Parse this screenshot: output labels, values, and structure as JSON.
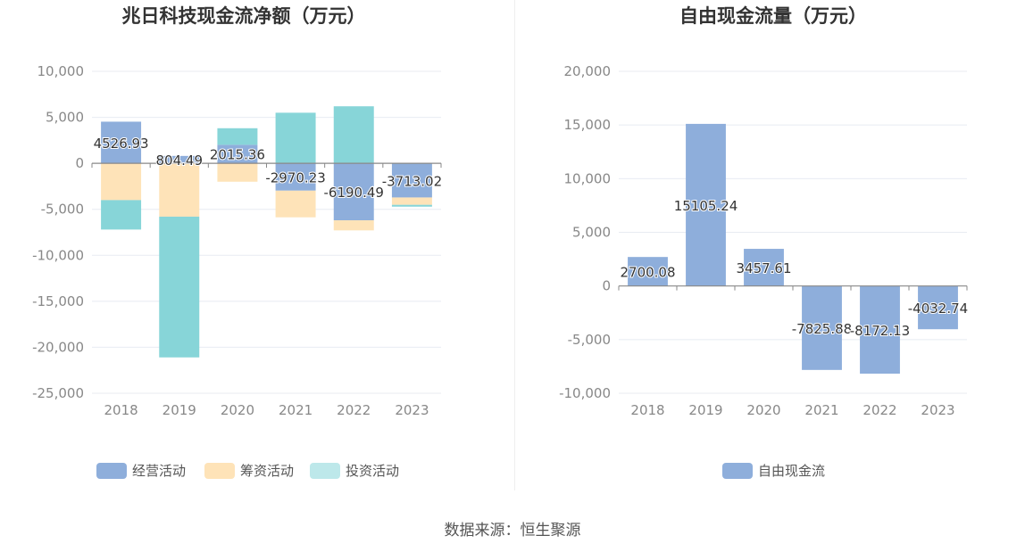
{
  "colors": {
    "operating": "#8eaedb",
    "financing": "#fee3b8",
    "investing": "#87d5d8",
    "fcf": "#8eaedb",
    "grid": "#e8ebf2",
    "axis": "#888888"
  },
  "chart_data": [
    {
      "type": "bar",
      "stacked": true,
      "title": "兆日科技现金流净额（万元）",
      "categories": [
        "2018",
        "2019",
        "2020",
        "2021",
        "2022",
        "2023"
      ],
      "ylim": [
        -25000,
        10000
      ],
      "yticks": [
        10000,
        5000,
        0,
        -5000,
        -10000,
        -15000,
        -20000,
        -25000
      ],
      "ytick_labels": [
        "10,000",
        "5,000",
        "0",
        "-5,000",
        "-10,000",
        "-15,000",
        "-20,000",
        "-25,000"
      ],
      "series": [
        {
          "name": "经营活动",
          "color_key": "operating",
          "values": [
            4526.93,
            804.49,
            2015.36,
            -2970.23,
            -6190.49,
            -3713.02
          ],
          "labels": [
            "4526.93",
            "804.49",
            "2015.36",
            "-2970.23",
            "-6190.49",
            "-3713.02"
          ]
        },
        {
          "name": "筹资活动",
          "color_key": "financing",
          "values": [
            -4000,
            -5800,
            -2000,
            -2900,
            -1100,
            -800
          ]
        },
        {
          "name": "投资活动",
          "color_key": "investing",
          "values": [
            -3200,
            -15300,
            1800,
            5500,
            6200,
            -200
          ]
        }
      ],
      "legend": [
        "经营活动",
        "筹资活动",
        "投资活动"
      ],
      "legend_position": "bottom"
    },
    {
      "type": "bar",
      "title": "自由现金流量（万元）",
      "categories": [
        "2018",
        "2019",
        "2020",
        "2021",
        "2022",
        "2023"
      ],
      "ylim": [
        -10000,
        20000
      ],
      "yticks": [
        20000,
        15000,
        10000,
        5000,
        0,
        -5000,
        -10000
      ],
      "ytick_labels": [
        "20,000",
        "15,000",
        "10,000",
        "5,000",
        "0",
        "-5,000",
        "-10,000"
      ],
      "series": [
        {
          "name": "自由现金流",
          "color_key": "fcf",
          "values": [
            2700.08,
            15105.24,
            3457.61,
            -7825.88,
            -8172.13,
            -4032.74
          ],
          "labels": [
            "2700.08",
            "15105.24",
            "3457.61",
            "-7825.88",
            "-8172.13",
            "-4032.74"
          ]
        }
      ],
      "legend": [
        "自由现金流"
      ],
      "legend_position": "bottom"
    }
  ],
  "footer": {
    "source": "数据来源：恒生聚源"
  }
}
